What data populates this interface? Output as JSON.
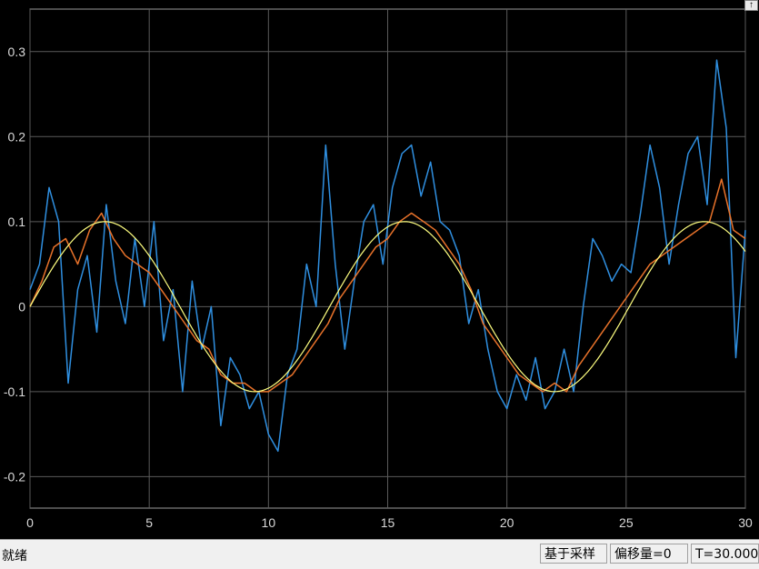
{
  "chart_data": {
    "type": "line",
    "title": "",
    "xlabel": "",
    "ylabel": "",
    "xlim": [
      0,
      30
    ],
    "ylim": [
      -0.237,
      0.35
    ],
    "xticks": [
      0,
      5,
      10,
      15,
      20,
      25,
      30
    ],
    "yticks": [
      -0.2,
      -0.1,
      0,
      0.1,
      0.2,
      0.3
    ],
    "xtick_labels": [
      "0",
      "5",
      "10",
      "15",
      "20",
      "25",
      "30"
    ],
    "ytick_labels": [
      "-0.2",
      "-0.1",
      "0",
      "0.1",
      "0.2",
      "0.3"
    ],
    "grid": true,
    "background": "#000000",
    "grid_color": "#5a5a5a",
    "series": [
      {
        "color": "#2f8fe0",
        "x": [
          0,
          0.4,
          0.8,
          1.2,
          1.6,
          2.0,
          2.4,
          2.8,
          3.2,
          3.6,
          4.0,
          4.4,
          4.8,
          5.2,
          5.6,
          6.0,
          6.4,
          6.8,
          7.2,
          7.6,
          8.0,
          8.4,
          8.8,
          9.2,
          9.6,
          10.0,
          10.4,
          10.8,
          11.2,
          11.6,
          12.0,
          12.4,
          12.8,
          13.2,
          13.6,
          14.0,
          14.4,
          14.8,
          15.2,
          15.6,
          16.0,
          16.4,
          16.8,
          17.2,
          17.6,
          18.0,
          18.4,
          18.8,
          19.2,
          19.6,
          20.0,
          20.4,
          20.8,
          21.2,
          21.6,
          22.0,
          22.4,
          22.8,
          23.2,
          23.6,
          24.0,
          24.4,
          24.8,
          25.2,
          25.6,
          26.0,
          26.4,
          26.8,
          27.2,
          27.6,
          28.0,
          28.4,
          28.8,
          29.2,
          29.6,
          30.0
        ],
        "y": [
          0.02,
          0.05,
          0.14,
          0.1,
          -0.09,
          0.02,
          0.06,
          -0.03,
          0.12,
          0.03,
          -0.02,
          0.08,
          0.0,
          0.1,
          -0.04,
          0.02,
          -0.1,
          0.03,
          -0.05,
          0.0,
          -0.14,
          -0.06,
          -0.08,
          -0.12,
          -0.1,
          -0.15,
          -0.17,
          -0.08,
          -0.05,
          0.05,
          0.0,
          0.19,
          0.05,
          -0.05,
          0.03,
          0.1,
          0.12,
          0.05,
          0.14,
          0.18,
          0.19,
          0.13,
          0.17,
          0.1,
          0.09,
          0.06,
          -0.02,
          0.02,
          -0.05,
          -0.1,
          -0.12,
          -0.08,
          -0.11,
          -0.06,
          -0.12,
          -0.1,
          -0.05,
          -0.1,
          0.0,
          0.08,
          0.06,
          0.03,
          0.05,
          0.04,
          0.11,
          0.19,
          0.14,
          0.05,
          0.12,
          0.18,
          0.2,
          0.12,
          0.29,
          0.21,
          -0.06,
          0.09
        ]
      },
      {
        "color": "#e8722a",
        "x": [
          0,
          0.5,
          1.0,
          1.5,
          2.0,
          2.5,
          3.0,
          3.5,
          4.0,
          4.5,
          5.0,
          5.5,
          6.0,
          6.5,
          7.0,
          7.5,
          8.0,
          8.5,
          9.0,
          9.5,
          10.0,
          10.5,
          11.0,
          11.5,
          12.0,
          12.5,
          13.0,
          13.5,
          14.0,
          14.5,
          15.0,
          15.5,
          16.0,
          16.5,
          17.0,
          17.5,
          18.0,
          18.5,
          19.0,
          19.5,
          20.0,
          20.5,
          21.0,
          21.5,
          22.0,
          22.5,
          23.0,
          23.5,
          24.0,
          24.5,
          25.0,
          25.5,
          26.0,
          26.5,
          27.0,
          27.5,
          28.0,
          28.5,
          29.0,
          29.5,
          30.0
        ],
        "y": [
          0.0,
          0.03,
          0.07,
          0.08,
          0.05,
          0.09,
          0.11,
          0.08,
          0.06,
          0.05,
          0.04,
          0.02,
          0.0,
          -0.02,
          -0.04,
          -0.05,
          -0.08,
          -0.09,
          -0.09,
          -0.1,
          -0.1,
          -0.09,
          -0.08,
          -0.06,
          -0.04,
          -0.02,
          0.01,
          0.03,
          0.05,
          0.07,
          0.08,
          0.1,
          0.11,
          0.1,
          0.09,
          0.07,
          0.05,
          0.02,
          -0.02,
          -0.04,
          -0.06,
          -0.08,
          -0.09,
          -0.1,
          -0.09,
          -0.1,
          -0.07,
          -0.05,
          -0.03,
          -0.01,
          0.01,
          0.03,
          0.05,
          0.06,
          0.07,
          0.08,
          0.09,
          0.1,
          0.15,
          0.09,
          0.08
        ]
      },
      {
        "color": "#ffff80",
        "function": "0.1*sin(2*pi*x/12.566)",
        "amplitude": 0.1,
        "period": 12.566
      }
    ]
  },
  "scope": {
    "restore_icon": "restore-arrow-icon"
  },
  "statusbar": {
    "status": "就绪",
    "sampling": "基于采样",
    "offset": "偏移量=0",
    "time": "T=30.000"
  }
}
